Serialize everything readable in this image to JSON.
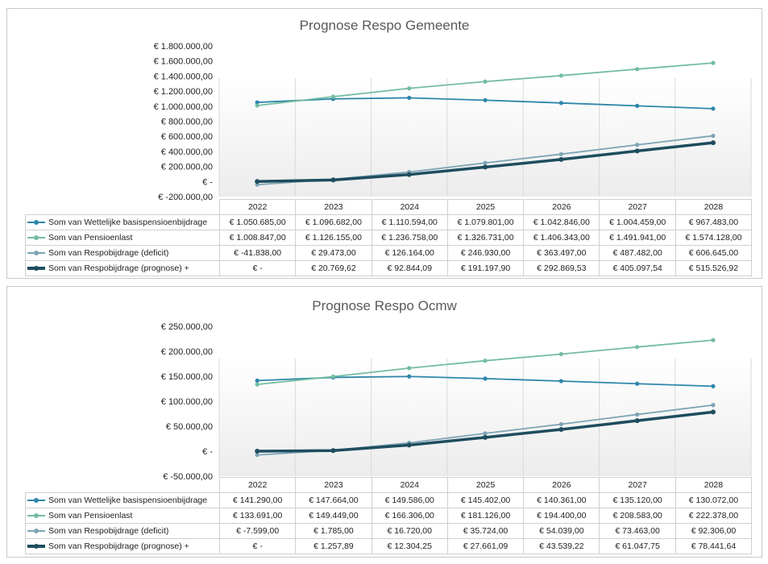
{
  "chart_data": [
    {
      "type": "line",
      "title": "Prognose Respo Gemeente",
      "categories": [
        "2022",
        "2023",
        "2024",
        "2025",
        "2026",
        "2027",
        "2028"
      ],
      "y_tick_labels": [
        "€ 1.800.000,00",
        "€ 1.600.000,00",
        "€ 1.400.000,00",
        "€ 1.200.000,00",
        "€ 1.000.000,00",
        "€ 800.000,00",
        "€ 600.000,00",
        "€ 400.000,00",
        "€ 200.000,00",
        "€ -",
        "€ -200.000,00"
      ],
      "ylim": [
        -200000,
        1800000
      ],
      "grid": "vertical",
      "legend": "data-table",
      "series": [
        {
          "name": "Som van Wettelijke basispensioenbijdrage",
          "color": "#2e86ab",
          "values": [
            1050685,
            1096682,
            1110594,
            1079801,
            1042846,
            1004459,
            967483
          ],
          "labels": [
            "€ 1.050.685,00",
            "€ 1.096.682,00",
            "€ 1.110.594,00",
            "€ 1.079.801,00",
            "€ 1.042.846,00",
            "€ 1.004.459,00",
            "€ 967.483,00"
          ]
        },
        {
          "name": "Som van Pensioenlast",
          "color": "#73bda0",
          "values": [
            1008847,
            1126155,
            1236758,
            1326731,
            1406343,
            1491941,
            1574128
          ],
          "labels": [
            "€ 1.008.847,00",
            "€ 1.126.155,00",
            "€ 1.236.758,00",
            "€ 1.326.731,00",
            "€ 1.406.343,00",
            "€ 1.491.941,00",
            "€ 1.574.128,00"
          ]
        },
        {
          "name": "Som van Respobijdrage (deficit)",
          "color": "#7ca4b4",
          "values": [
            -41838,
            29473,
            126164,
            246930,
            363497,
            487482,
            606645
          ],
          "labels": [
            "€ -41.838,00",
            "€ 29.473,00",
            "€ 126.164,00",
            "€ 246.930,00",
            "€ 363.497,00",
            "€ 487.482,00",
            "€ 606.645,00"
          ]
        },
        {
          "name": "Som van Respobijdrage (prognose) +",
          "color": "#1e4d5f",
          "thick": true,
          "values": [
            0,
            20769.62,
            92844.09,
            191197.9,
            292869.53,
            405097.54,
            515526.92
          ],
          "labels": [
            "€ -",
            "€ 20.769,62",
            "€ 92.844,09",
            "€ 191.197,90",
            "€ 292.869,53",
            "€ 405.097,54",
            "€ 515.526,92"
          ]
        }
      ]
    },
    {
      "type": "line",
      "title": "Prognose Respo Ocmw",
      "categories": [
        "2022",
        "2023",
        "2024",
        "2025",
        "2026",
        "2027",
        "2028"
      ],
      "y_tick_labels": [
        "€ 250.000,00",
        "€ 200.000,00",
        "€ 150.000,00",
        "€ 100.000,00",
        "€ 50.000,00",
        "€ -",
        "€ -50.000,00"
      ],
      "ylim": [
        -50000,
        250000
      ],
      "grid": "vertical",
      "legend": "data-table",
      "series": [
        {
          "name": "Som van Wettelijke basispensioenbijdrage",
          "color": "#2e86ab",
          "values": [
            141290,
            147664,
            149586,
            145402,
            140361,
            135120,
            130072
          ],
          "labels": [
            "€ 141.290,00",
            "€ 147.664,00",
            "€ 149.586,00",
            "€ 145.402,00",
            "€ 140.361,00",
            "€ 135.120,00",
            "€ 130.072,00"
          ]
        },
        {
          "name": "Som van Pensioenlast",
          "color": "#73bda0",
          "values": [
            133691,
            149449,
            166306,
            181126,
            194400,
            208583,
            222378
          ],
          "labels": [
            "€ 133.691,00",
            "€ 149.449,00",
            "€ 166.306,00",
            "€ 181.126,00",
            "€ 194.400,00",
            "€ 208.583,00",
            "€ 222.378,00"
          ]
        },
        {
          "name": "Som van Respobijdrage (deficit)",
          "color": "#7ca4b4",
          "values": [
            -7599,
            1785,
            16720,
            35724,
            54039,
            73463,
            92306
          ],
          "labels": [
            "€ -7.599,00",
            "€ 1.785,00",
            "€ 16.720,00",
            "€ 35.724,00",
            "€ 54.039,00",
            "€ 73.463,00",
            "€ 92.306,00"
          ]
        },
        {
          "name": "Som van Respobijdrage (prognose) +",
          "color": "#1e4d5f",
          "thick": true,
          "values": [
            0,
            1257.89,
            12304.25,
            27661.09,
            43539.22,
            61047.75,
            78441.64
          ],
          "labels": [
            "€ -",
            "€ 1.257,89",
            "€ 12.304,25",
            "€ 27.661,09",
            "€ 43.539,22",
            "€ 61.047,75",
            "€ 78.441,64"
          ]
        }
      ]
    }
  ]
}
